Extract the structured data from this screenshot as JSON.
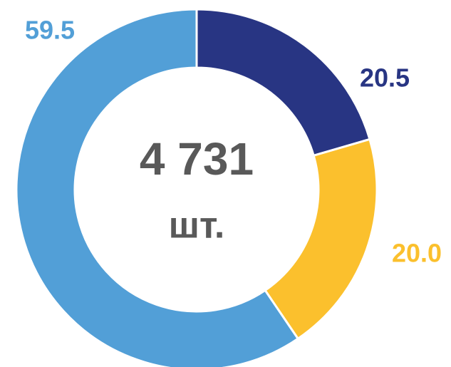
{
  "chart_data": {
    "type": "donut",
    "center_label": "4 731",
    "center_unit": "шт.",
    "categories": [
      null,
      null,
      null
    ],
    "values": [
      20.5,
      20.0,
      59.5
    ],
    "value_labels": [
      "20.5",
      "20.0",
      "59.5"
    ],
    "colors": [
      "#283583",
      "#fbc02d",
      "#529fd7"
    ]
  }
}
